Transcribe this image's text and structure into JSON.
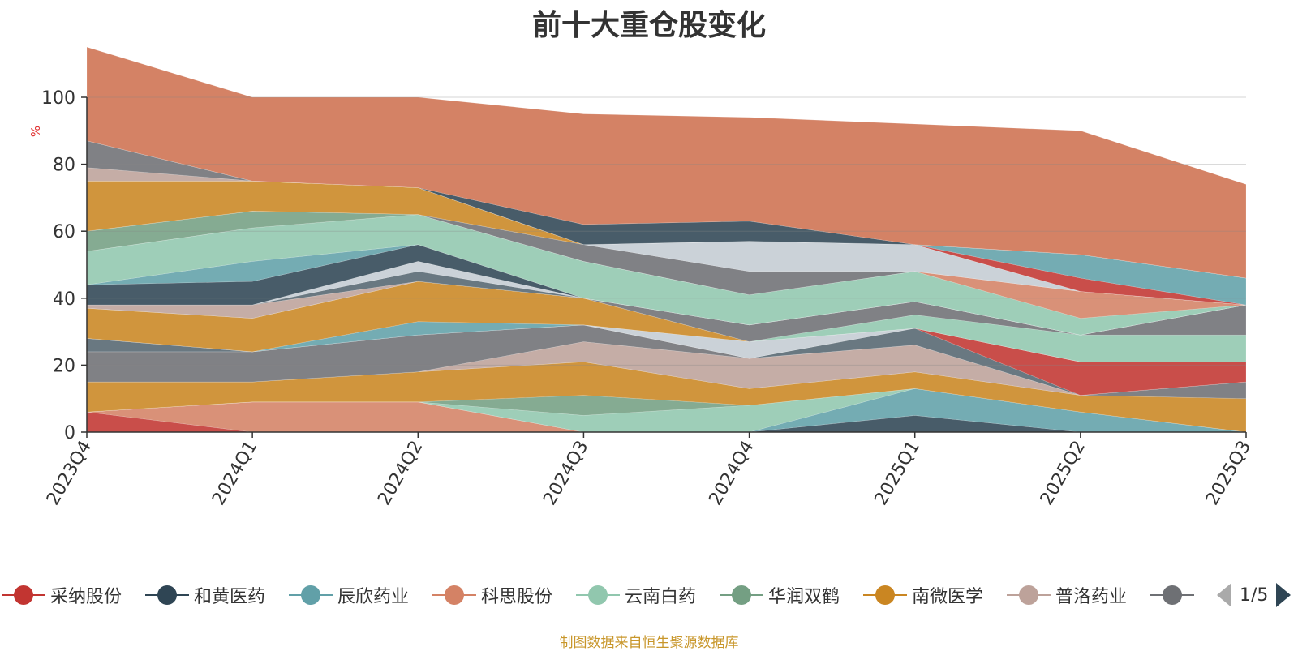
{
  "title": "前十大重仓股变化",
  "source_note": "制图数据来自恒生聚源数据库",
  "pager": {
    "label": "1/5"
  },
  "colors": {
    "top_fill": "#e0a58f",
    "axis": "#333333",
    "ylabel": "#e03030",
    "palette": [
      "#c23531",
      "#2f4554",
      "#61a0a8",
      "#d48265",
      "#91c7ae",
      "#749f83",
      "#ca8622",
      "#bda29a",
      "#6e7074",
      "#546570"
    ]
  },
  "legend": [
    {
      "name": "采纳股份",
      "color": "#c23531"
    },
    {
      "name": "和黄医药",
      "color": "#2f4554"
    },
    {
      "name": "辰欣药业",
      "color": "#61a0a8"
    },
    {
      "name": "科思股份",
      "color": "#d48265"
    },
    {
      "name": "云南白药",
      "color": "#91c7ae"
    },
    {
      "name": "华润双鹤",
      "color": "#749f83"
    },
    {
      "name": "南微医学",
      "color": "#ca8622"
    },
    {
      "name": "普洛药业",
      "color": "#bda29a"
    },
    {
      "name": "…",
      "color": "#6e7074"
    }
  ],
  "chart_data": {
    "type": "area",
    "title": "前十大重仓股变化",
    "xlabel": "",
    "ylabel": "%",
    "ylim": [
      0,
      100
    ],
    "yticks": [
      0,
      20,
      40,
      60,
      80,
      100
    ],
    "grid": true,
    "categories": [
      "2023Q4",
      "2024Q1",
      "2024Q2",
      "2024Q3",
      "2024Q4",
      "2025Q1",
      "2025Q2",
      "2025Q3"
    ],
    "series": [
      {
        "color": "#c23531",
        "values": [
          6,
          0,
          0,
          0,
          0,
          0,
          0,
          0
        ]
      },
      {
        "color": "#d48265",
        "values": [
          0,
          9,
          9,
          0,
          0,
          0,
          0,
          0
        ]
      },
      {
        "color": "#2f4554",
        "values": [
          0,
          0,
          0,
          0,
          0,
          5,
          0,
          0
        ]
      },
      {
        "color": "#61a0a8",
        "values": [
          0,
          0,
          0,
          0,
          0,
          8,
          6,
          0
        ]
      },
      {
        "color": "#91c7ae",
        "values": [
          0,
          0,
          0,
          5,
          8,
          0,
          0,
          0
        ]
      },
      {
        "color": "#749f83",
        "values": [
          0,
          0,
          0,
          6,
          0,
          0,
          0,
          0
        ]
      },
      {
        "color": "#ca8622",
        "values": [
          9,
          6,
          9,
          10,
          5,
          5,
          5,
          10
        ]
      },
      {
        "color": "#6e7074",
        "values": [
          0,
          0,
          0,
          0,
          0,
          0,
          0,
          5
        ]
      },
      {
        "color": "#bda29a",
        "values": [
          0,
          0,
          0,
          6,
          9,
          8,
          0,
          0
        ]
      },
      {
        "color": "#6e7074",
        "values": [
          9,
          9,
          11,
          5,
          0,
          0,
          0,
          0
        ]
      },
      {
        "color": "#546570",
        "values": [
          4,
          0,
          0,
          0,
          0,
          5,
          0,
          0
        ]
      },
      {
        "color": "#c23531",
        "values": [
          0,
          0,
          0,
          0,
          0,
          0,
          10,
          6
        ]
      },
      {
        "color": "#c4ccd3",
        "values": [
          0,
          0,
          0,
          0,
          5,
          0,
          0,
          0
        ]
      },
      {
        "color": "#61a0a8",
        "values": [
          0,
          0,
          4,
          0,
          0,
          0,
          0,
          0
        ]
      },
      {
        "color": "#ca8622",
        "values": [
          9,
          10,
          12,
          8,
          0,
          0,
          0,
          0
        ]
      },
      {
        "color": "#91c7ae",
        "values": [
          0,
          0,
          0,
          0,
          0,
          4,
          8,
          8
        ]
      },
      {
        "color": "#6e7074",
        "values": [
          0,
          0,
          0,
          0,
          5,
          4,
          0,
          9
        ]
      },
      {
        "color": "#bda29a",
        "values": [
          1,
          4,
          0,
          0,
          0,
          0,
          0,
          0
        ]
      },
      {
        "color": "#546570",
        "values": [
          0,
          0,
          3,
          0,
          0,
          0,
          0,
          0
        ]
      },
      {
        "color": "#c4ccd3",
        "values": [
          0,
          0,
          3,
          0,
          0,
          0,
          0,
          0
        ]
      },
      {
        "color": "#2f4554",
        "values": [
          6,
          7,
          5,
          0,
          0,
          0,
          0,
          0
        ]
      },
      {
        "color": "#61a0a8",
        "values": [
          0,
          6,
          0,
          0,
          0,
          0,
          0,
          0
        ]
      },
      {
        "color": "#91c7ae",
        "values": [
          10,
          10,
          9,
          11,
          9,
          9,
          5,
          0
        ]
      },
      {
        "color": "#d48265",
        "values": [
          0,
          0,
          0,
          0,
          0,
          0,
          8,
          0
        ]
      },
      {
        "color": "#749f83",
        "values": [
          6,
          5,
          0,
          0,
          0,
          0,
          0,
          0
        ]
      },
      {
        "color": "#6e7074",
        "values": [
          0,
          0,
          0,
          5,
          7,
          0,
          0,
          0
        ]
      },
      {
        "color": "#c4ccd3",
        "values": [
          0,
          0,
          0,
          0,
          9,
          8,
          0,
          0
        ]
      },
      {
        "color": "#ca8622",
        "values": [
          15,
          9,
          8,
          0,
          0,
          0,
          0,
          0
        ]
      },
      {
        "color": "#c23531",
        "values": [
          0,
          0,
          0,
          0,
          0,
          0,
          4,
          0
        ]
      },
      {
        "color": "#61a0a8",
        "values": [
          0,
          0,
          0,
          0,
          0,
          0,
          7,
          8
        ]
      },
      {
        "color": "#bda29a",
        "values": [
          4,
          0,
          0,
          0,
          0,
          0,
          0,
          0
        ]
      },
      {
        "color": "#6e7074",
        "values": [
          8,
          0,
          0,
          0,
          0,
          0,
          0,
          0
        ]
      },
      {
        "color": "#2f4554",
        "values": [
          0,
          0,
          0,
          6,
          6,
          0,
          0,
          0
        ]
      },
      {
        "color": "#d48265",
        "values": [
          28,
          25,
          27,
          33,
          31,
          36,
          37,
          28
        ]
      }
    ]
  }
}
